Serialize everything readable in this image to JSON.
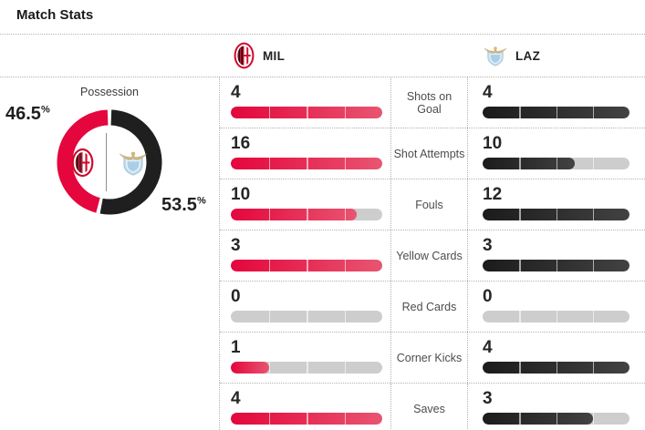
{
  "page": {
    "title": "Match Stats"
  },
  "header": {
    "home_abbr": "MIL",
    "away_abbr": "LAZ"
  },
  "colors": {
    "home_accent": "#e4063c",
    "home_accent_light": "#e85571",
    "away_accent": "#1b1b1b",
    "away_accent_light": "#424242",
    "bar_empty": "#cdcdcd",
    "divider_dotted": "#b3b3b3"
  },
  "chart_data": [
    {
      "type": "pie",
      "title": "Possession",
      "labels": [
        "MIL",
        "LAZ"
      ],
      "values": [
        46.5,
        53.5
      ],
      "unit": "%",
      "colors": [
        "#e4063c",
        "#1f1f1f"
      ],
      "layout": "donut split at 12 o'clock, home share counterclockwise (left, red), away clockwise (right, black), value labels outside ring"
    },
    {
      "type": "bar",
      "categories": [
        "Shots on Goal",
        "Shot Attempts",
        "Fouls",
        "Yellow Cards",
        "Red Cards",
        "Corner Kicks",
        "Saves"
      ],
      "series": [
        {
          "name": "MIL",
          "values": [
            4,
            16,
            10,
            3,
            0,
            1,
            4
          ]
        },
        {
          "name": "LAZ",
          "values": [
            4,
            10,
            12,
            3,
            0,
            4,
            3
          ]
        }
      ],
      "layout": "paired horizontal pill bars per category; fill width = value / max(pair); 4 segment ticks per bar; home red gradient, away black gradient, empty gray"
    }
  ]
}
